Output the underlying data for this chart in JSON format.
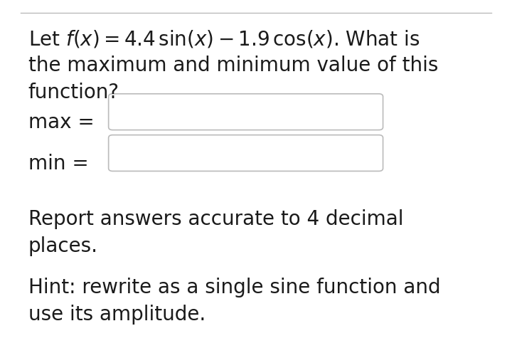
{
  "background_color": "#ffffff",
  "top_line_color": "#bbbbbb",
  "title_line1": "Let $f(x) = 4.4\\,\\sin(x) - 1.9\\,\\cos(x)$. What is",
  "title_line2": "the maximum and minimum value of this",
  "title_line3": "function?",
  "label_max": "max =",
  "label_min": "min =",
  "report_line1": "Report answers accurate to 4 decimal",
  "report_line2": "places.",
  "hint_line1": "Hint: rewrite as a single sine function and",
  "hint_line2": "use its amplitude.",
  "text_color": "#1a1a1a",
  "box_edge_color": "#bbbbbb",
  "box_fill": "#ffffff",
  "font_size_main": 20,
  "font_size_label": 20,
  "font_size_body": 20
}
